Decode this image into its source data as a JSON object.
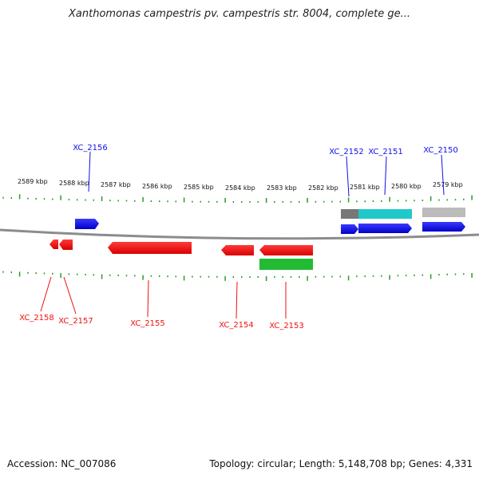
{
  "title": "Xanthomonas campestris pv. campestris str. 8004, complete ge...",
  "accession": "Accession: NC_007086",
  "summary": "Topology: circular; Length: 5,148,708 bp; Genes: 4,331",
  "colors": {
    "forward_gene": "#1010e8",
    "reverse_gene": "#ee1111",
    "rna_feature": "#20c8c8",
    "misc_feature_green": "#22bb33",
    "gray_feature": "#bbbbbb",
    "dark_gray_feature": "#777777",
    "tick": "#2a9a2a",
    "backbone": "#999999"
  },
  "scale_labels": [
    "2589 kbp",
    "2588 kbp",
    "2587 kbp",
    "2586 kbp",
    "2585 kbp",
    "2584 kbp",
    "2583 kbp",
    "2582 kbp",
    "2581 kbp",
    "2580 kbp",
    "2579 kbp"
  ],
  "gene_labels": {
    "top": [
      "XC_2156",
      "XC_2152",
      "XC_2151",
      "XC_2150"
    ],
    "bottom": [
      "XC_2158",
      "XC_2157",
      "XC_2155",
      "XC_2154",
      "XC_2153"
    ]
  }
}
